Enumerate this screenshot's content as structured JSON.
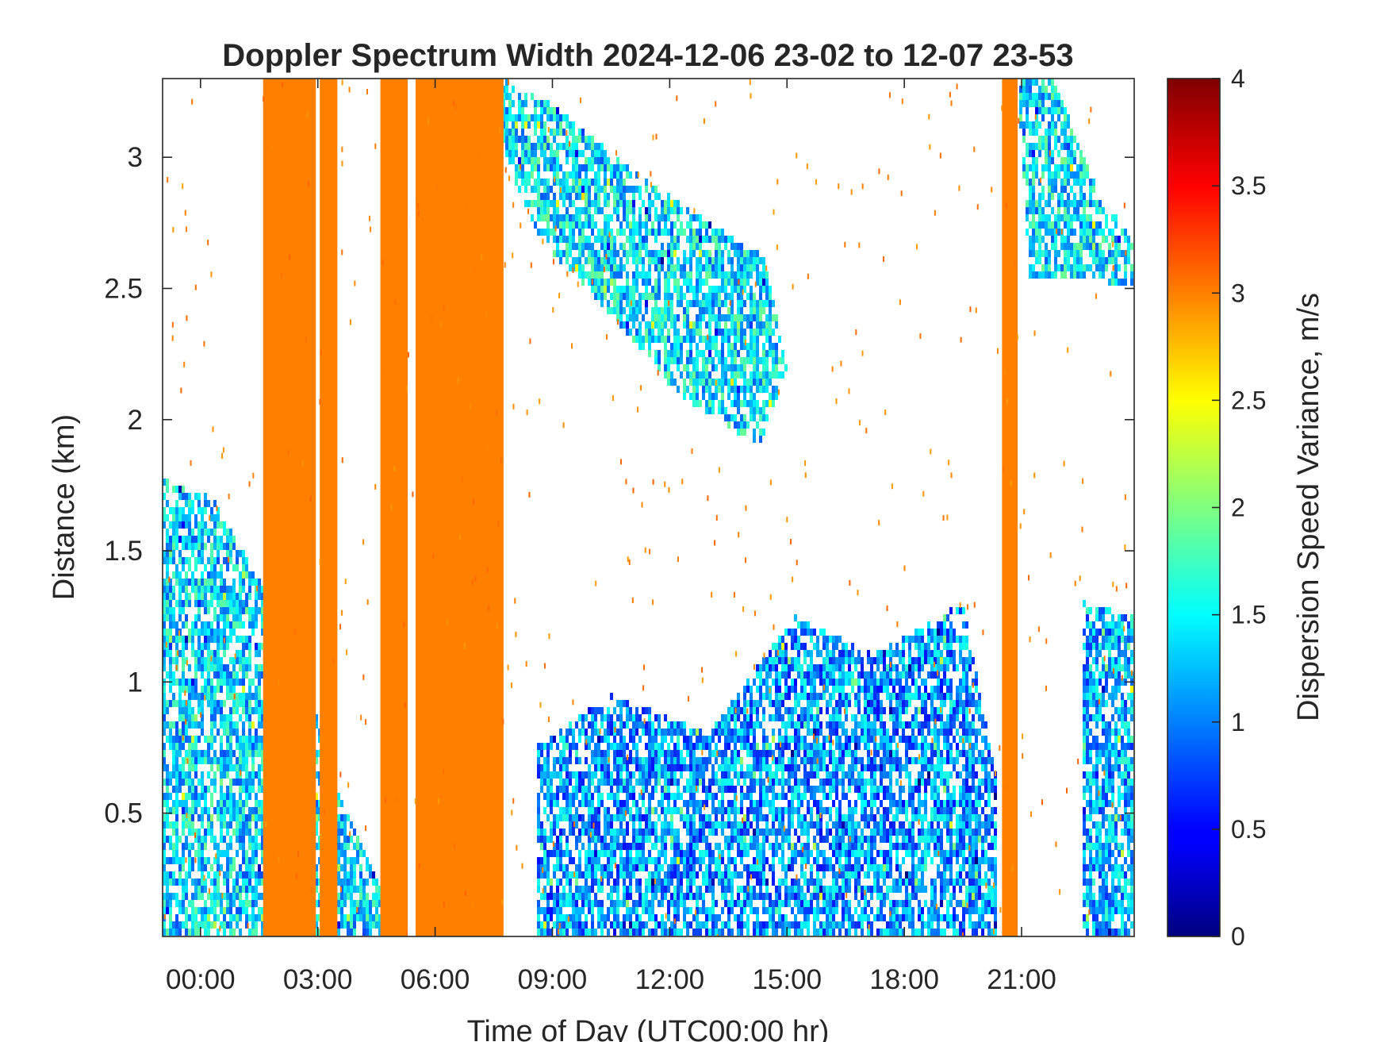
{
  "chart_data": {
    "type": "heatmap",
    "title": "Doppler Spectrum Width 2024-12-06 23-02 to 12-07 23-53",
    "xlabel": "Time of Day (UTC00:00 hr)",
    "ylabel": "Distance (km)",
    "colorbar_label": "Dispersion Speed Variance, m/s",
    "x_unit": "hour",
    "xlim": [
      -0.97,
      23.88
    ],
    "ylim": [
      0.03,
      3.3
    ],
    "clim": [
      0,
      4
    ],
    "colormap": "jet",
    "grid": false,
    "x_ticks": [
      {
        "value": 0,
        "label": "00:00"
      },
      {
        "value": 3,
        "label": "03:00"
      },
      {
        "value": 6,
        "label": "06:00"
      },
      {
        "value": 9,
        "label": "09:00"
      },
      {
        "value": 12,
        "label": "12:00"
      },
      {
        "value": 15,
        "label": "15:00"
      },
      {
        "value": 18,
        "label": "18:00"
      },
      {
        "value": 21,
        "label": "21:00"
      }
    ],
    "y_ticks": [
      {
        "value": 0.5,
        "label": "0.5"
      },
      {
        "value": 1,
        "label": "1"
      },
      {
        "value": 1.5,
        "label": "1.5"
      },
      {
        "value": 2,
        "label": "2"
      },
      {
        "value": 2.5,
        "label": "2.5"
      },
      {
        "value": 3,
        "label": "3"
      }
    ],
    "colorbar_ticks": [
      {
        "value": 0,
        "label": "0"
      },
      {
        "value": 0.5,
        "label": "0.5"
      },
      {
        "value": 1,
        "label": "1"
      },
      {
        "value": 1.5,
        "label": "1.5"
      },
      {
        "value": 2,
        "label": "2"
      },
      {
        "value": 2.5,
        "label": "2.5"
      },
      {
        "value": 3,
        "label": "3"
      },
      {
        "value": 3.5,
        "label": "3.5"
      },
      {
        "value": 4,
        "label": "4"
      }
    ],
    "saturated_bands": [
      {
        "x0": 1.6,
        "x1": 2.95,
        "y0": 0.03,
        "y1": 3.3,
        "value": 3
      },
      {
        "x0": 3.05,
        "x1": 3.5,
        "y0": 0.03,
        "y1": 3.3,
        "value": 3
      },
      {
        "x0": 4.6,
        "x1": 5.3,
        "y0": 0.03,
        "y1": 3.3,
        "value": 3
      },
      {
        "x0": 5.5,
        "x1": 7.75,
        "y0": 0.03,
        "y1": 3.3,
        "value": 3
      },
      {
        "x0": 20.5,
        "x1": 20.9,
        "y0": 0.03,
        "y1": 3.3,
        "value": 3
      }
    ],
    "echo_regions": [
      {
        "name": "morning residual layer",
        "points": [
          [
            -0.97,
            1.77
          ],
          [
            0.3,
            1.7
          ],
          [
            2.4,
            1.15
          ],
          [
            3.6,
            0.55
          ],
          [
            5.2,
            0.03
          ],
          [
            -0.97,
            0.03
          ]
        ],
        "value_mean": 1.35
      },
      {
        "name": "descending cloud layer",
        "points": [
          [
            7.7,
            3.3
          ],
          [
            9.0,
            3.2
          ],
          [
            11.0,
            2.95
          ],
          [
            13.0,
            2.75
          ],
          [
            14.4,
            2.62
          ],
          [
            15.0,
            2.2
          ],
          [
            14.3,
            1.9
          ],
          [
            12.2,
            2.1
          ],
          [
            10.5,
            2.4
          ],
          [
            8.6,
            2.7
          ],
          [
            7.7,
            3.05
          ]
        ],
        "value_mean": 1.4
      },
      {
        "name": "daytime boundary layer",
        "points": [
          [
            8.6,
            0.75
          ],
          [
            10.5,
            0.95
          ],
          [
            13.0,
            0.8
          ],
          [
            15.2,
            1.25
          ],
          [
            17.2,
            1.1
          ],
          [
            19.5,
            1.3
          ],
          [
            20.4,
            0.6
          ],
          [
            20.4,
            0.03
          ],
          [
            8.6,
            0.03
          ]
        ],
        "value_mean": 1.1
      },
      {
        "name": "night cloud layer",
        "points": [
          [
            20.9,
            3.3
          ],
          [
            21.8,
            3.3
          ],
          [
            23.0,
            2.85
          ],
          [
            23.88,
            2.7
          ],
          [
            23.88,
            2.5
          ],
          [
            22.5,
            2.55
          ],
          [
            21.2,
            2.55
          ]
        ],
        "value_mean": 1.4
      },
      {
        "name": "night boundary layer",
        "points": [
          [
            22.6,
            1.3
          ],
          [
            23.88,
            1.25
          ],
          [
            23.88,
            0.03
          ],
          [
            22.6,
            0.03
          ]
        ],
        "value_mean": 1.2
      }
    ]
  }
}
